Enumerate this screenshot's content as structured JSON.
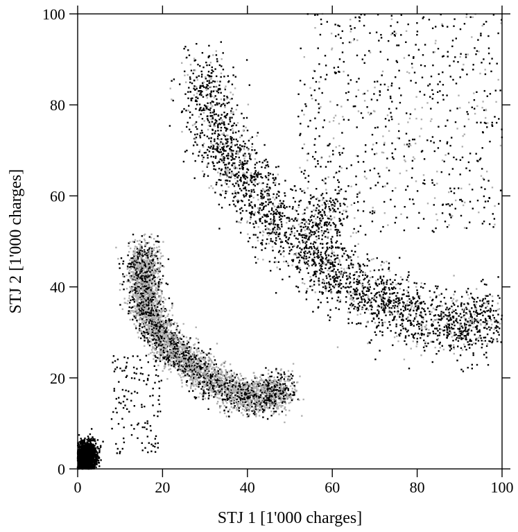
{
  "chart_data": {
    "type": "scatter",
    "title": "",
    "xlabel": "STJ 1 [1'000 charges]",
    "ylabel": "STJ 2 [1'000 charges]",
    "xlim": [
      0,
      100
    ],
    "ylim": [
      0,
      100
    ],
    "x_ticks": [
      0,
      20,
      40,
      60,
      80,
      100
    ],
    "y_ticks": [
      0,
      20,
      40,
      60,
      80,
      100
    ],
    "x_tick_labels": [
      "0",
      "20",
      "40",
      "60",
      "80",
      "100"
    ],
    "y_tick_labels": [
      "0",
      "20",
      "40",
      "60",
      "80",
      "100"
    ],
    "grid": false,
    "legend": "none",
    "series_colors": [
      "#000000",
      "#b0b0b0"
    ],
    "clusters": [
      {
        "kind": "blob",
        "x": 2,
        "y": 2.5,
        "sx": 1.1,
        "sy": 1.6,
        "n": 2500,
        "gray": 0.0
      },
      {
        "kind": "arc",
        "points": [
          [
            16,
            48
          ],
          [
            15.5,
            42
          ],
          [
            16,
            36
          ],
          [
            19,
            30
          ],
          [
            24,
            25
          ],
          [
            30,
            20.5
          ],
          [
            37,
            16.5
          ],
          [
            44,
            16
          ],
          [
            49,
            18
          ]
        ],
        "spread": 2.0,
        "n": 4200,
        "gray": 0.62
      },
      {
        "kind": "arc",
        "points": [
          [
            30,
            88
          ],
          [
            31,
            78
          ],
          [
            35,
            70
          ],
          [
            40,
            63
          ],
          [
            46,
            55
          ],
          [
            53,
            48
          ],
          [
            60,
            43
          ],
          [
            67,
            39
          ],
          [
            75,
            35
          ],
          [
            84,
            32
          ],
          [
            92,
            31
          ],
          [
            97,
            34
          ]
        ],
        "spread": 3.6,
        "n": 2800,
        "gray": 0.22
      },
      {
        "kind": "blob",
        "x": 58,
        "y": 56,
        "sx": 3.5,
        "sy": 4.5,
        "n": 200,
        "gray": 0.2
      },
      {
        "kind": "rect",
        "x0": 52,
        "x1": 100,
        "y0": 52,
        "y1": 100,
        "n": 700,
        "gray": 0.25
      },
      {
        "kind": "rect",
        "x0": 8,
        "x1": 20,
        "y0": 3,
        "y1": 25,
        "n": 130,
        "gray": 0.0
      }
    ]
  }
}
